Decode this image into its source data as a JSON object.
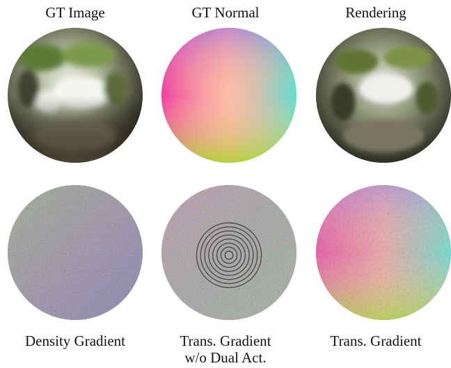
{
  "columns_top": [
    "GT Image",
    "GT Normal",
    "Rendering"
  ],
  "columns_bottom": [
    {
      "line1": "Density Gradient",
      "line2": ""
    },
    {
      "line1": "Trans. Gradient",
      "line2": "w/o Dual Act."
    },
    {
      "line1": "Trans. Gradient",
      "line2": ""
    }
  ],
  "panels": [
    {
      "name": "gt-image-sphere",
      "style": "metallic-reflection"
    },
    {
      "name": "gt-normal-sphere",
      "style": "normal-map-smooth"
    },
    {
      "name": "rendering-sphere",
      "style": "metallic-reflection-dark"
    },
    {
      "name": "density-gradient-sphere",
      "style": "noisy-normal-muted"
    },
    {
      "name": "trans-gradient-no-dual-sphere",
      "style": "noisy-normal-rings"
    },
    {
      "name": "trans-gradient-sphere",
      "style": "normal-map-noisy"
    }
  ]
}
